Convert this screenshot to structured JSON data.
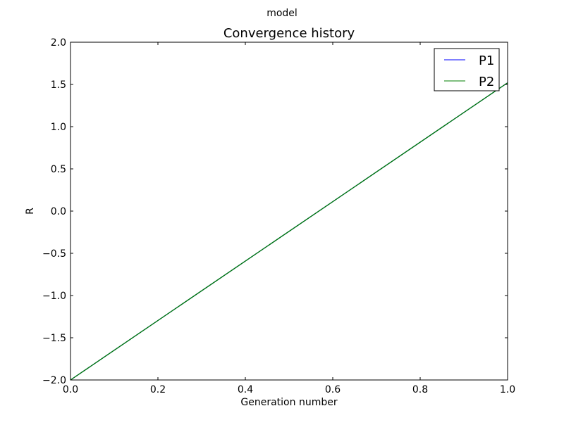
{
  "figure": {
    "suptitle": "model"
  },
  "chart_data": {
    "type": "line",
    "title": "Convergence history",
    "xlabel": "Generation number",
    "ylabel": "R",
    "xlim": [
      0.0,
      1.0
    ],
    "ylim": [
      -2.0,
      2.0
    ],
    "x_ticks": [
      "0.0",
      "0.2",
      "0.4",
      "0.6",
      "0.8",
      "1.0"
    ],
    "y_ticks": [
      "−2.0",
      "−1.5",
      "−1.0",
      "−0.5",
      "0.0",
      "0.5",
      "1.0",
      "1.5",
      "2.0"
    ],
    "grid": false,
    "legend_position": "top-right",
    "series": [
      {
        "name": "P1",
        "color": "#0000ff",
        "x": [
          0.0,
          1.0
        ],
        "y": [
          -2.0,
          1.52
        ]
      },
      {
        "name": "P2",
        "color": "#007f00",
        "x": [
          0.0,
          1.0
        ],
        "y": [
          -2.0,
          1.52
        ]
      }
    ]
  }
}
